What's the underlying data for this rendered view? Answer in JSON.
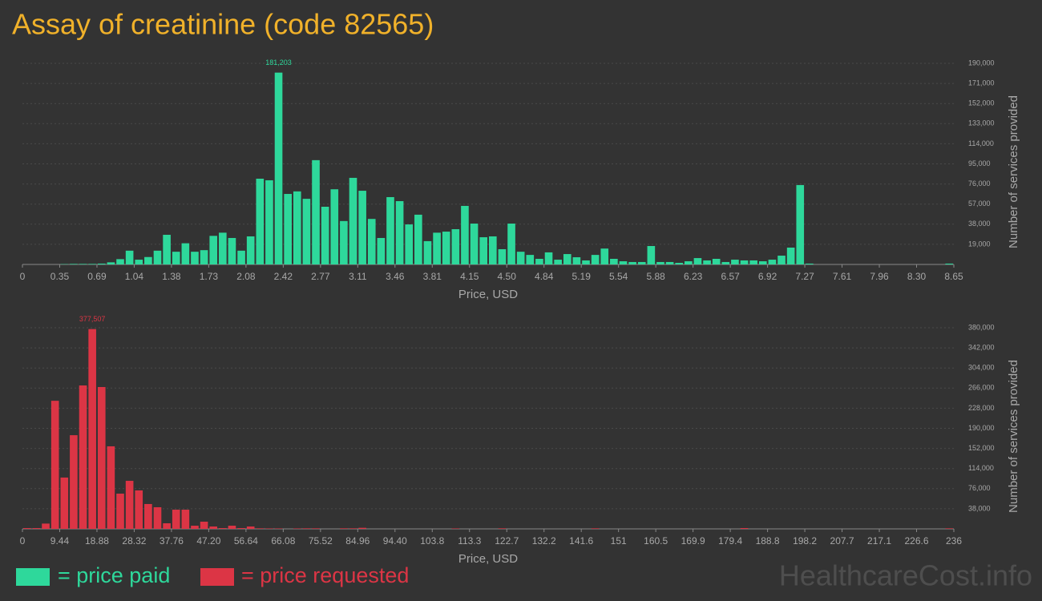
{
  "title": "Assay of creatinine (code 82565)",
  "watermark": "HealthcareCost.info",
  "chart_data": [
    {
      "type": "histogram",
      "series": [
        {
          "name": "= price paid",
          "color": "#2ed89b",
          "values": [
            0,
            0,
            0,
            0,
            300,
            500,
            500,
            500,
            800,
            2000,
            5000,
            13000,
            4500,
            7000,
            13000,
            28000,
            12000,
            20000,
            12000,
            13500,
            27000,
            30000,
            25000,
            13000,
            26500,
            81000,
            79500,
            181203,
            66600,
            69000,
            62000,
            98500,
            54500,
            71000,
            41000,
            81800,
            69600,
            43000,
            25000,
            63600,
            59800,
            37800,
            47000,
            22000,
            30000,
            31000,
            33300,
            55300,
            38600,
            25700,
            26500,
            14400,
            38600,
            12000,
            9000,
            5300,
            11400,
            4500,
            9800,
            6800,
            3800,
            9000,
            15000,
            5300,
            3000,
            2300,
            2300,
            17400,
            2300,
            2300,
            1500,
            3000,
            6000,
            3800,
            5300,
            2300,
            4500,
            3800,
            3800,
            3000,
            4500,
            8300,
            15900,
            75000,
            800,
            0,
            0,
            0,
            0,
            0,
            0,
            0,
            0,
            0,
            0,
            0,
            0,
            0,
            0,
            800
          ],
          "value_labels": [
            null,
            null,
            null,
            null,
            null,
            null,
            null,
            null,
            null,
            null,
            null,
            null,
            null,
            null,
            null,
            null,
            null,
            null,
            null,
            null,
            null,
            null,
            null,
            null,
            null,
            null,
            null,
            "181,203",
            null,
            null,
            null,
            null,
            null,
            null,
            null,
            null,
            null,
            null,
            null,
            null,
            null,
            null,
            null,
            null,
            null,
            null,
            null,
            null,
            null,
            null,
            null,
            null,
            null,
            null,
            null,
            null,
            null,
            null,
            null,
            null,
            null,
            null,
            null,
            null,
            null,
            null,
            null,
            null,
            null,
            null,
            null,
            null,
            null,
            null,
            null,
            null,
            null,
            null,
            null,
            null,
            null,
            null,
            null,
            null,
            null,
            null,
            null,
            null,
            null,
            null,
            null,
            null,
            null,
            null,
            null,
            null,
            null,
            null,
            null,
            null
          ]
        }
      ],
      "bins": [
        0,
        0.0865,
        0.173,
        0.2595,
        0.346,
        0.4325,
        0.519,
        0.6055,
        0.692,
        0.7785,
        0.865,
        0.9515,
        1.038,
        1.1245,
        1.211,
        1.2975,
        1.384,
        1.4705,
        1.557,
        1.6435,
        1.73,
        1.8165,
        1.903,
        1.9895,
        2.076,
        2.1625,
        2.249,
        2.3355,
        2.422,
        2.5085,
        2.595,
        2.6815,
        2.768,
        2.8545,
        2.941,
        3.0275,
        3.114,
        3.2005,
        3.287,
        3.3735,
        3.46,
        3.5465,
        3.633,
        3.7195,
        3.806,
        3.8925,
        3.979,
        4.0655,
        4.152,
        4.2385,
        4.325,
        4.4115,
        4.498,
        4.5845,
        4.671,
        4.7575,
        4.844,
        4.9305,
        5.017,
        5.1035,
        5.19,
        5.2765,
        5.363,
        5.4495,
        5.536,
        5.6225,
        5.709,
        5.7955,
        5.882,
        5.9685,
        6.055,
        6.1415,
        6.228,
        6.3145,
        6.401,
        6.4875,
        6.574,
        6.6605,
        6.747,
        6.8335,
        6.92,
        7.0065,
        7.093,
        7.1795,
        7.266,
        7.3525,
        7.439,
        7.5255,
        7.612,
        7.6985,
        7.785,
        7.8715,
        7.958,
        8.0445,
        8.131,
        8.2175,
        8.304,
        8.3905,
        8.477,
        8.5635,
        8.65
      ],
      "xlim": [
        0,
        8.65
      ],
      "ylim": [
        0,
        190000
      ],
      "xticks": [
        0,
        {
          "value": 0.346,
          "label": "0.35"
        },
        {
          "value": 0.692,
          "label": "0.69"
        },
        {
          "value": 1.038,
          "label": "1.04"
        },
        {
          "value": 1.384,
          "label": "1.38"
        },
        1.73,
        {
          "value": 2.076,
          "label": "2.08"
        },
        {
          "value": 2.422,
          "label": "2.42"
        },
        {
          "value": 2.768,
          "label": "2.77"
        },
        {
          "value": 3.114,
          "label": "3.11"
        },
        3.46,
        {
          "value": 3.806,
          "label": "3.81"
        },
        {
          "value": 4.152,
          "label": "4.15"
        },
        {
          "value": 4.498,
          "label": "4.50"
        },
        {
          "value": 4.844,
          "label": "4.84"
        },
        5.19,
        {
          "value": 5.536,
          "label": "5.54"
        },
        {
          "value": 5.882,
          "label": "5.88"
        },
        {
          "value": 6.228,
          "label": "6.23"
        },
        {
          "value": 6.574,
          "label": "6.57"
        },
        6.92,
        {
          "value": 7.266,
          "label": "7.27"
        },
        {
          "value": 7.612,
          "label": "7.61"
        },
        {
          "value": 7.958,
          "label": "7.96"
        },
        {
          "value": 8.304,
          "label": "8.30"
        },
        8.65
      ],
      "yticks": [
        {
          "value": 19000,
          "label": "19,000"
        },
        {
          "value": 38000,
          "label": "38,000"
        },
        {
          "value": 57000,
          "label": "57,000"
        },
        {
          "value": 76000,
          "label": "76,000"
        },
        {
          "value": 95000,
          "label": "95,000"
        },
        {
          "value": 114000,
          "label": "114,000"
        },
        {
          "value": 133000,
          "label": "133,000"
        },
        {
          "value": 152000,
          "label": "152,000"
        },
        {
          "value": 171000,
          "label": "171,000"
        },
        {
          "value": 190000,
          "label": "190,000"
        }
      ],
      "xlabel": "Price, USD",
      "ylabel": "Number of services provided",
      "grid": true
    },
    {
      "type": "histogram",
      "series": [
        {
          "name": "= price requested",
          "color": "#dc3545",
          "values": [
            1500,
            1500,
            10000,
            242000,
            97000,
            177000,
            271000,
            377507,
            268000,
            156000,
            66600,
            90800,
            72700,
            47000,
            40900,
            10600,
            36300,
            36300,
            6000,
            13600,
            4500,
            1500,
            6000,
            1500,
            4500,
            1000,
            800,
            800,
            0,
            800,
            1000,
            1000,
            0,
            0,
            1000,
            1000,
            2000,
            0,
            0,
            0,
            0,
            0,
            0,
            0,
            0,
            0,
            800,
            0,
            0,
            0,
            0,
            1000,
            0,
            0,
            0,
            0,
            0,
            0,
            0,
            0,
            0,
            1000,
            0,
            0,
            0,
            0,
            0,
            0,
            0,
            0,
            0,
            0,
            0,
            0,
            0,
            0,
            0,
            1500,
            0,
            0,
            0,
            0,
            0,
            0,
            0,
            0,
            0,
            0,
            0,
            0,
            0,
            0,
            0,
            0,
            0,
            0,
            0,
            0,
            0,
            1000
          ],
          "value_labels": [
            null,
            null,
            null,
            null,
            null,
            null,
            null,
            "377,507",
            null,
            null,
            null,
            null,
            null,
            null,
            null,
            null,
            null,
            null,
            null,
            null,
            null,
            null,
            null,
            null,
            null,
            null,
            null,
            null,
            null,
            null,
            null,
            null,
            null,
            null,
            null,
            null,
            null,
            null,
            null,
            null,
            null,
            null,
            null,
            null,
            null,
            null,
            null,
            null,
            null,
            null,
            null,
            null,
            null,
            null,
            null,
            null,
            null,
            null,
            null,
            null,
            null,
            null,
            null,
            null,
            null,
            null,
            null,
            null,
            null,
            null,
            null,
            null,
            null,
            null,
            null,
            null,
            null,
            null,
            null,
            null,
            null,
            null,
            null,
            null,
            null,
            null,
            null,
            null,
            null,
            null,
            null,
            null,
            null,
            null,
            null,
            null,
            null,
            null,
            null,
            null
          ]
        }
      ],
      "bins": [
        0,
        2.36,
        4.72,
        7.08,
        9.44,
        11.8,
        14.16,
        16.52,
        18.88,
        21.24,
        23.6,
        25.96,
        28.32,
        30.68,
        33.04,
        35.4,
        37.76,
        40.12,
        42.48,
        44.84,
        47.2,
        49.56,
        51.92,
        54.28,
        56.64,
        59,
        61.36,
        63.72,
        66.08,
        68.44,
        70.8,
        73.16,
        75.52,
        77.88,
        80.24,
        82.6,
        84.96,
        87.32,
        89.68,
        92.04,
        94.4,
        96.76,
        99.12,
        101.48,
        103.84,
        106.2,
        108.56,
        110.92,
        113.28,
        115.64,
        118,
        120.36,
        122.72,
        125.08,
        127.44,
        129.8,
        132.16,
        134.52,
        136.88,
        139.24,
        141.6,
        143.96,
        146.32,
        148.68,
        151.04,
        153.4,
        155.76,
        158.12,
        160.48,
        162.84,
        165.2,
        167.56,
        169.92,
        172.28,
        174.64,
        177,
        179.36,
        181.72,
        184.08,
        186.44,
        188.8,
        191.16,
        193.52,
        195.88,
        198.24,
        200.6,
        202.96,
        205.32,
        207.68,
        210.04,
        212.4,
        214.76,
        217.12,
        219.48,
        221.84,
        224.2,
        226.56,
        228.92,
        231.28,
        233.64,
        236
      ],
      "xlim": [
        0,
        236
      ],
      "ylim": [
        0,
        380000
      ],
      "xticks": [
        0,
        9.44,
        18.88,
        28.32,
        37.76,
        {
          "value": 47.2,
          "label": "47.20"
        },
        56.64,
        66.08,
        75.52,
        84.96,
        {
          "value": 94.4,
          "label": "94.40"
        },
        {
          "value": 103.84,
          "label": "103.8"
        },
        {
          "value": 113.28,
          "label": "113.3"
        },
        {
          "value": 122.72,
          "label": "122.7"
        },
        {
          "value": 132.16,
          "label": "132.2"
        },
        141.6,
        {
          "value": 151.04,
          "label": "151"
        },
        {
          "value": 160.48,
          "label": "160.5"
        },
        {
          "value": 169.92,
          "label": "169.9"
        },
        {
          "value": 179.36,
          "label": "179.4"
        },
        188.8,
        {
          "value": 198.24,
          "label": "198.2"
        },
        {
          "value": 207.68,
          "label": "207.7"
        },
        {
          "value": 217.12,
          "label": "217.1"
        },
        {
          "value": 226.56,
          "label": "226.6"
        },
        236
      ],
      "yticks": [
        {
          "value": 38000,
          "label": "38,000"
        },
        {
          "value": 76000,
          "label": "76,000"
        },
        {
          "value": 114000,
          "label": "114,000"
        },
        {
          "value": 152000,
          "label": "152,000"
        },
        {
          "value": 190000,
          "label": "190,000"
        },
        {
          "value": 228000,
          "label": "228,000"
        },
        {
          "value": 266000,
          "label": "266,000"
        },
        {
          "value": 304000,
          "label": "304,000"
        },
        {
          "value": 342000,
          "label": "342,000"
        },
        {
          "value": 380000,
          "label": "380,000"
        }
      ],
      "xlabel": "Price, USD",
      "ylabel": "Number of services provided",
      "grid": true
    }
  ]
}
